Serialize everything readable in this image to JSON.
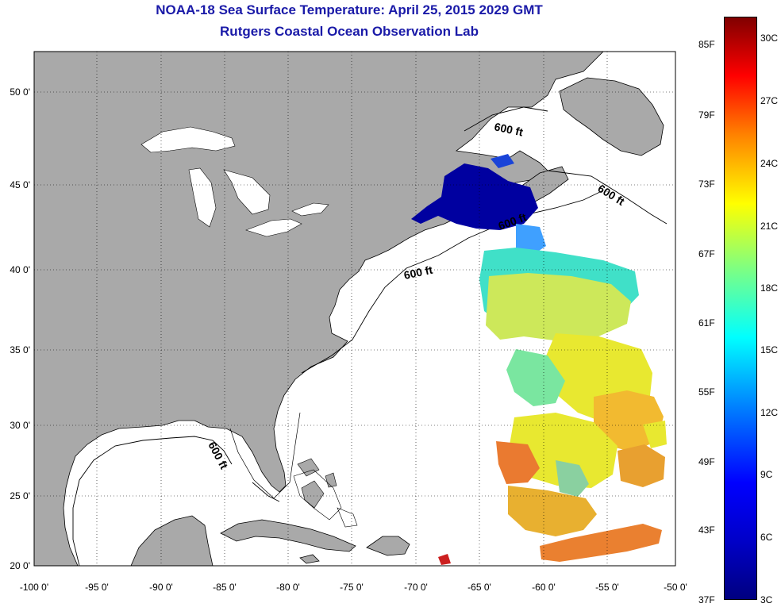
{
  "title": {
    "line1": "NOAA-18 Sea Surface Temperature:  April 25, 2015 2029 GMT",
    "line2": "Rutgers Coastal Ocean Observation Lab"
  },
  "map": {
    "lon_ticks": [
      "-100 0'",
      "-95 0'",
      "-90 0'",
      "-85 0'",
      "-80 0'",
      "-75 0'",
      "-70 0'",
      "-65 0'",
      "-60 0'",
      "-55 0'",
      "-50 0'"
    ],
    "lat_ticks": [
      "50 0'",
      "45 0'",
      "40 0'",
      "35 0'",
      "30 0'",
      "25 0'",
      "20 0'"
    ],
    "contour_labels": [
      "600 ft",
      "600 ft",
      "600 ft",
      "600 ft",
      "600 ft"
    ],
    "colors": {
      "land": "#a9a9a9",
      "water": "#ffffff"
    }
  },
  "colorbar": {
    "fahrenheit": [
      "85F",
      "79F",
      "73F",
      "67F",
      "61F",
      "55F",
      "49F",
      "43F",
      "37F"
    ],
    "celsius": [
      "30C",
      "27C",
      "24C",
      "21C",
      "18C",
      "15C",
      "12C",
      "9C",
      "6C",
      "3C"
    ],
    "colors": [
      "#000080",
      "#0000ff",
      "#00ffff",
      "#ffff00",
      "#ff8000",
      "#ff0000",
      "#800000"
    ]
  }
}
